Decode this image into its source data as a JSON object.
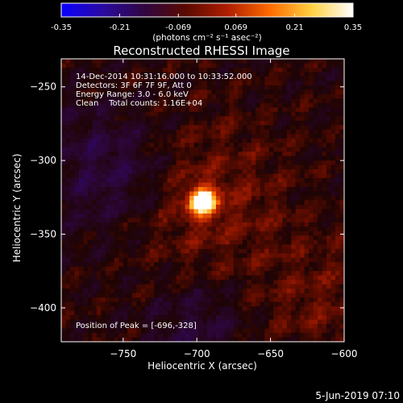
{
  "colorbar": {
    "tick_labels": [
      "-0.35",
      "-0.21",
      "-0.069",
      "0.069",
      "0.21",
      "0.35"
    ],
    "tick_values": [
      -0.35,
      -0.21,
      -0.069,
      0.069,
      0.21,
      0.35
    ],
    "range": [
      -0.35,
      0.35
    ],
    "unit_label": "(photons cm⁻² s⁻¹ asec⁻²)",
    "stops": [
      "#0b00ff",
      "#2a0aa0",
      "#300640",
      "#5a0a00",
      "#b01e00",
      "#ff6a00",
      "#ffd040",
      "#ffffff"
    ]
  },
  "footer_date": "5-Jun-2019 07:10",
  "chart_data": {
    "type": "heatmap",
    "title": "Reconstructed RHESSI Image",
    "xlabel": "Heliocentric X (arcsec)",
    "ylabel": "Heliocentric Y (arcsec)",
    "xlim": [
      -792,
      -600
    ],
    "ylim": [
      -423,
      -231
    ],
    "xticks": [
      -750,
      -700,
      -650,
      -600
    ],
    "xtick_labels": [
      "−750",
      "−700",
      "−650",
      "−600"
    ],
    "yticks": [
      -250,
      -300,
      -350,
      -400
    ],
    "ytick_labels": [
      "−250",
      "−300",
      "−350",
      "−400"
    ],
    "annotations": [
      "14-Dec-2014 10:31:16.000 to 10:33:52.000",
      "Detectors: 3F 6F 7F 9F, Att 0",
      "Energy Range: 3.0 - 6.0 keV",
      "Clean    Total counts: 1.16E+04"
    ],
    "peak_label": "Position of Peak = [-696,-328]",
    "peak": {
      "x": -696,
      "y": -328,
      "value": 0.35
    }
  }
}
